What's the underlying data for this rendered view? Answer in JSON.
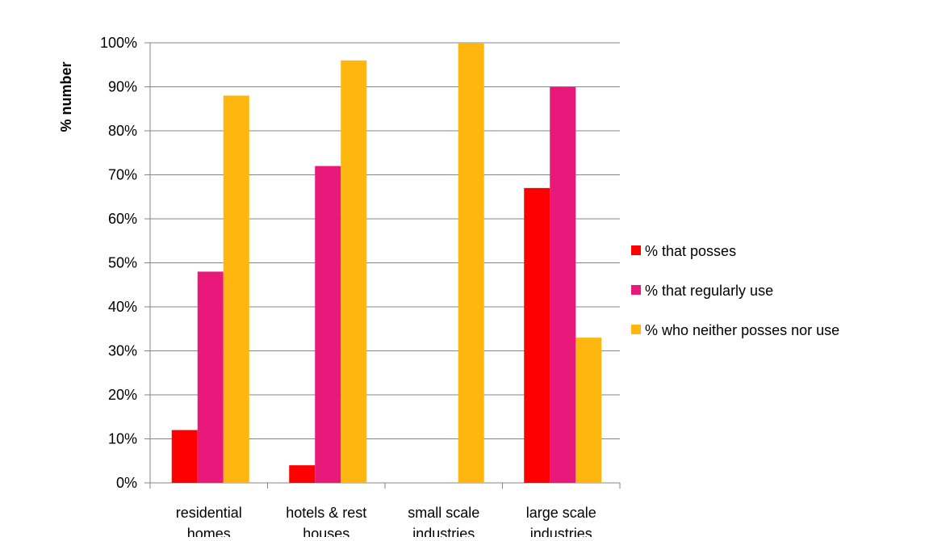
{
  "chart_data": {
    "type": "bar",
    "title": "",
    "xlabel": "",
    "ylabel": "% number",
    "ylim": [
      0,
      100
    ],
    "yticks": [
      "0%",
      "10%",
      "20%",
      "30%",
      "40%",
      "50%",
      "60%",
      "70%",
      "80%",
      "90%",
      "100%"
    ],
    "grid": true,
    "legend_position": "right",
    "categories": [
      [
        "residential",
        "homes"
      ],
      [
        "hotels & rest",
        "houses"
      ],
      [
        "small scale",
        "industries"
      ],
      [
        "large scale",
        "industries"
      ]
    ],
    "series": [
      {
        "name": "% that posses",
        "color": "#ff0000",
        "values": [
          12,
          4,
          0,
          67
        ]
      },
      {
        "name": "% that regularly use",
        "color": "#e8197a",
        "values": [
          48,
          72,
          0,
          90
        ]
      },
      {
        "name": "% who neither posses nor use",
        "color": "#ffb60f",
        "values": [
          88,
          96,
          100,
          33
        ]
      }
    ]
  }
}
